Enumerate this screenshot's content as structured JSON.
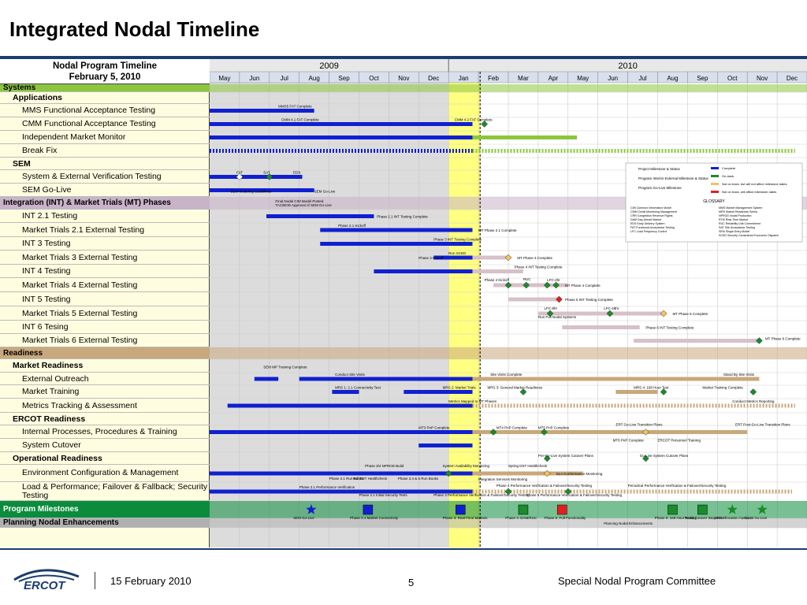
{
  "slide_title": "Integrated Nodal Timeline",
  "chart_header": {
    "line1": "Nodal Program Timeline",
    "line2": "February 5, 2010"
  },
  "years": [
    "2009",
    "2010"
  ],
  "months": [
    "May",
    "Jun",
    "Jul",
    "Aug",
    "Sep",
    "Oct",
    "Nov",
    "Dec",
    "Jan",
    "Feb",
    "Mar",
    "Apr",
    "May",
    "Jun",
    "Jul",
    "Aug",
    "Sep",
    "Oct",
    "Nov",
    "Dec"
  ],
  "rows": [
    {
      "label": "Systems",
      "kind": "sect",
      "color": "#8cc63f"
    },
    {
      "label": "Applications",
      "kind": "cat"
    },
    {
      "label": "MMS Functional Acceptance Testing",
      "kind": "item"
    },
    {
      "label": "CMM Functional Acceptance Testing",
      "kind": "item"
    },
    {
      "label": "Independent Market Monitor",
      "kind": "item"
    },
    {
      "label": "Break Fix",
      "kind": "item"
    },
    {
      "label": "SEM",
      "kind": "cat"
    },
    {
      "label": "System & External Verification Testing",
      "kind": "item"
    },
    {
      "label": "SEM Go-Live",
      "kind": "item"
    },
    {
      "label": "Integration (INT) & Market Trials (MT) Phases",
      "kind": "sect",
      "color": "#c9b3c9"
    },
    {
      "label": "INT 2.1 Testing",
      "kind": "item"
    },
    {
      "label": "Market Trials 2.1 External Testing",
      "kind": "item"
    },
    {
      "label": "INT 3 Testing",
      "kind": "item"
    },
    {
      "label": "Market Trials 3 External Testing",
      "kind": "item"
    },
    {
      "label": "INT 4 Testing",
      "kind": "item"
    },
    {
      "label": "Market Trials 4 External Testing",
      "kind": "item"
    },
    {
      "label": "INT 5 Testing",
      "kind": "item"
    },
    {
      "label": "Market Trials 5 External Testing",
      "kind": "item"
    },
    {
      "label": "INT 6 Tesing",
      "kind": "item"
    },
    {
      "label": "Market Trials 6 External Testing",
      "kind": "item"
    },
    {
      "label": "Readiness",
      "kind": "sect",
      "color": "#c8a87c"
    },
    {
      "label": "Market Readiness",
      "kind": "cat"
    },
    {
      "label": "External Outreach",
      "kind": "item"
    },
    {
      "label": "Market Training",
      "kind": "item"
    },
    {
      "label": "Metrics Tracking & Assessment",
      "kind": "item"
    },
    {
      "label": "ERCOT Readiness",
      "kind": "cat"
    },
    {
      "label": "Internal Processes, Procedures & Training",
      "kind": "item"
    },
    {
      "label": "System Cutover",
      "kind": "item"
    },
    {
      "label": "Operational Readiness",
      "kind": "cat"
    },
    {
      "label": "Environment Configuration & Management",
      "kind": "item"
    },
    {
      "label": "Load & Performance; Failover & Fallback; Security Testing",
      "kind": "item"
    },
    {
      "label": "Program Milestones",
      "kind": "sect",
      "color": "#0a8c3c"
    },
    {
      "label": "Planning Nodal Enhancements",
      "kind": "sect",
      "color": "#b0b0b0"
    }
  ],
  "annotations": [
    "MMS5 FAT Complete",
    "CMM 4.1 FAT Complete",
    "CMM 4.2 FAT Complete",
    "FAT",
    "SAT",
    "EDS",
    "SEM Modeling Guidelines",
    "SEM Go-Live",
    "Final Nodal CIM Model Posted",
    "TAC/BOD Approval of SEM Go-Live",
    "Phase 2.1 INT Testing Complete",
    "Phase 2.1 Kickoff",
    "MT Phase 2.1 Complete",
    "Phase 3 INT Testing Complete",
    "Run SCED",
    "Phase 3 Kickoff",
    "MT Phase 3 Complete",
    "Phase 4 INT Testing Complete",
    "Phase 4 Kickoff",
    "RUC",
    "LFC-2hr",
    "MT Phase 4 Complete",
    "Phase 5 INT Testing Complete",
    "LFC-8hr",
    "LFC-48hr",
    "MT Phase 5 Complete",
    "Run Full Nodal Systems",
    "Phase 6 INT Testing Complete",
    "MT Phase 6 Complete",
    "Site Visits Complete",
    "Conduct Site Visits",
    "Stand By Site Visits",
    "SEM MP Training Complete",
    "MRS 1: 2.1 Connectivity Test",
    "MRS 2: Market Trials",
    "MRS 3: General Market Readiness",
    "MRS 4: 168 Hour Test",
    "Market Training Complete",
    "Metrics Mapped to MT Phases",
    "Conduct Metrics Reporting",
    "MT3 PnP Complete",
    "MT4 PnP Complete",
    "MT5 PnP Complete",
    "MT6 PnP Complete",
    "ERT Go-Live Transition Plans",
    "ERT Post-Go-Live Transition Plans",
    "ERCOT Personnel Training",
    "Pre-Go-Live System Cutover Plans",
    "Go-Live System Cutover Plans",
    "Phase 3/4 NPROD Build",
    "System Availability Monitoring",
    "Spring DST Healthcheck",
    "SLA Conformance Monitoring",
    "Phase 2.1 Run Books",
    "Fall DST Healthcheck",
    "Phase 3,4 & 5 Run Books",
    "Integration Services Monitoring",
    "Phase 2.1 Performance Verification",
    "Phase 2.1 Initial Security Tests",
    "Phase 3 Performance Verification & Failover/Security Testing",
    "Phase 4 Performance Verification & Failover/Security Testing",
    "Phase 5 Performance Verification & Failover/Security Testing",
    "Periodical Performance Verification & Failover/Security Testing",
    "SEM Go-Live",
    "Phase 2.1 Market Connectivity",
    "Phase 3: Real-Time Markets",
    "Phase 4: DAM/RUC",
    "Phase 5: Full Functionality",
    "Phase 6: 168 Hour Testing",
    "Nodal Cutover Sequence",
    "CRR Allocation Auction",
    "Nodal Go-Live",
    "Planning Nodal Enhancements"
  ],
  "legend": {
    "left": [
      "Project Milestone & Status",
      "Program Interim External Milestone & Status",
      "Program Go-Live Milestone"
    ],
    "right": [
      "Complete",
      "On-track",
      "Not on track, but will not affect milestone dates",
      "Not on track, will affect milestone dates"
    ],
    "glossary_title": "GLOSSARY",
    "glossary": [
      [
        "CIM",
        "Common Information Model"
      ],
      [
        "CMM",
        "Credit Monitoring Management"
      ],
      [
        "CRR",
        "Congestion Revenue Rights"
      ],
      [
        "DAM",
        "Day-Ahead Market"
      ],
      [
        "EDS",
        "Early Delivery System"
      ],
      [
        "FAT",
        "Functional Acceptance Testing"
      ],
      [
        "LFC",
        "Load Frequency Control"
      ],
      [
        "MMS",
        "Market Management System"
      ],
      [
        "MRS",
        "Market Readiness Series"
      ],
      [
        "NPROD",
        "Nodal Production"
      ],
      [
        "RTM",
        "Real-Time Market"
      ],
      [
        "RUC",
        "Reliability Unit Commitment"
      ],
      [
        "SAT",
        "Site Acceptance Testing"
      ],
      [
        "SEM",
        "Single-Entry Model"
      ],
      [
        "SCED",
        "Security Constrained Economic Dispatch"
      ]
    ]
  },
  "colors": {
    "bar_blue": "#1020d0",
    "bar_tan": "#c8a87c",
    "bar_mauve": "#d8c0c8",
    "green": "#1a8c2a",
    "lime": "#8cc63f",
    "highlight": "#ffff80"
  },
  "footer": {
    "logo": "ERCOT",
    "date": "15 February 2010",
    "page": "5",
    "committee": "Special Nodal Program Committee"
  }
}
